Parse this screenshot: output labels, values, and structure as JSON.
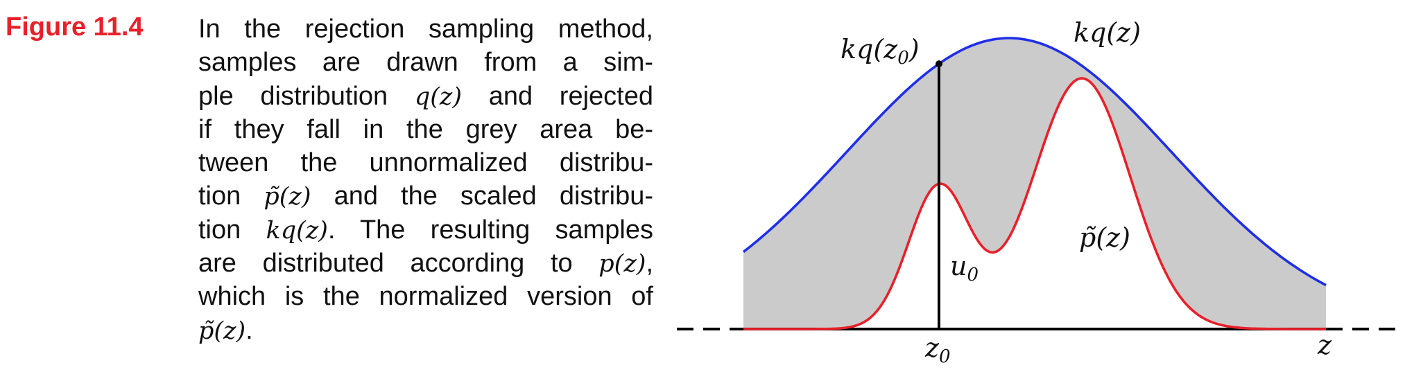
{
  "figure": {
    "label": "Figure 11.4",
    "caption_lines": [
      [
        {
          "t": "In the rejection sampling method,"
        }
      ],
      [
        {
          "t": "samples are drawn from a sim-"
        }
      ],
      [
        {
          "t": "ple distribution "
        },
        {
          "m": "q(z)"
        },
        {
          "t": " and rejected"
        }
      ],
      [
        {
          "t": "if they fall in the grey area be-"
        }
      ],
      [
        {
          "t": "tween the unnormalized distribu-"
        }
      ],
      [
        {
          "t": "tion "
        },
        {
          "m": "p̃(z)"
        },
        {
          "t": " and the scaled distribu-"
        }
      ],
      [
        {
          "t": "tion "
        },
        {
          "m": "kq(z)"
        },
        {
          "t": ". The resulting samples"
        }
      ],
      [
        {
          "t": "are distributed according to "
        },
        {
          "m": "p(z)"
        },
        {
          "t": ","
        }
      ],
      [
        {
          "t": "which is the normalized version of"
        }
      ],
      [
        {
          "m": "p̃(z)"
        },
        {
          "t": "."
        }
      ]
    ]
  },
  "diagram": {
    "labels": {
      "kq_z0_main": "kq(z",
      "kq_z0_sub": "0",
      "kq_z0_close": ")",
      "kq_z": "kq(z)",
      "p_tilde": "p̃(z)",
      "u0_main": "u",
      "u0_sub": "0",
      "z0_main": "z",
      "z0_sub": "0",
      "z_axis": "z"
    },
    "colors": {
      "envelope": "#1f2ee8",
      "target": "#e8202a",
      "shade": "#cbcbcb",
      "axis": "#000000"
    }
  }
}
